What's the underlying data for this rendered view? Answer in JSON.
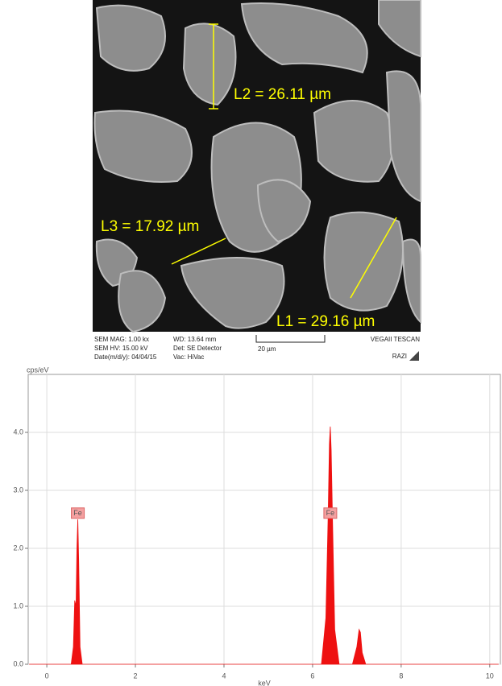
{
  "image": {
    "measurements": [
      "L2 = 26.11 µm",
      "L3 = 17.92 µm",
      "L1 = 29.16 µm"
    ],
    "info": {
      "mag": "SEM MAG: 1.00 kx",
      "wd": "WD: 13.64 mm",
      "hv": "SEM HV: 15.00 kV",
      "det": "Det: SE Detector",
      "scale": "20 µm",
      "date": "Date(m/d/y): 04/04/15",
      "vac": "Vac: HiVac",
      "maker": "VEGAII TESCAN",
      "site": "RAZI"
    }
  },
  "chart_data": {
    "type": "area",
    "y_label": "cps/eV",
    "x_label": "keV",
    "color": "#ee1111",
    "grid": true,
    "x": [
      -0.4,
      0.55,
      0.6,
      0.63,
      0.66,
      0.68,
      0.7,
      0.72,
      0.75,
      0.8,
      6.2,
      6.3,
      6.35,
      6.38,
      6.4,
      6.42,
      6.45,
      6.5,
      6.6,
      6.9,
      7.0,
      7.05,
      7.08,
      7.12,
      7.2,
      10.2
    ],
    "values": [
      0,
      0,
      0.3,
      1.1,
      1.0,
      2.0,
      2.5,
      1.8,
      0.3,
      0,
      0,
      0.8,
      2.5,
      3.8,
      4.1,
      3.7,
      2.5,
      0.6,
      0,
      0,
      0.3,
      0.6,
      0.55,
      0.2,
      0,
      0
    ],
    "annotations": [
      {
        "text": "Fe",
        "x": 0.7,
        "y": 2.6
      },
      {
        "text": "Fe",
        "x": 6.4,
        "y": 2.6
      }
    ],
    "xlim": [
      -0.42,
      10.24
    ],
    "ylim": [
      0,
      5
    ],
    "xticks": [
      0,
      2,
      4,
      6,
      8,
      10
    ],
    "yticks": [
      {
        "value": 0,
        "label": "0.0"
      },
      {
        "value": 1,
        "label": "1.0"
      },
      {
        "value": 2,
        "label": "2.0"
      },
      {
        "value": 3,
        "label": "3.0"
      },
      {
        "value": 4,
        "label": "4.0"
      }
    ]
  }
}
